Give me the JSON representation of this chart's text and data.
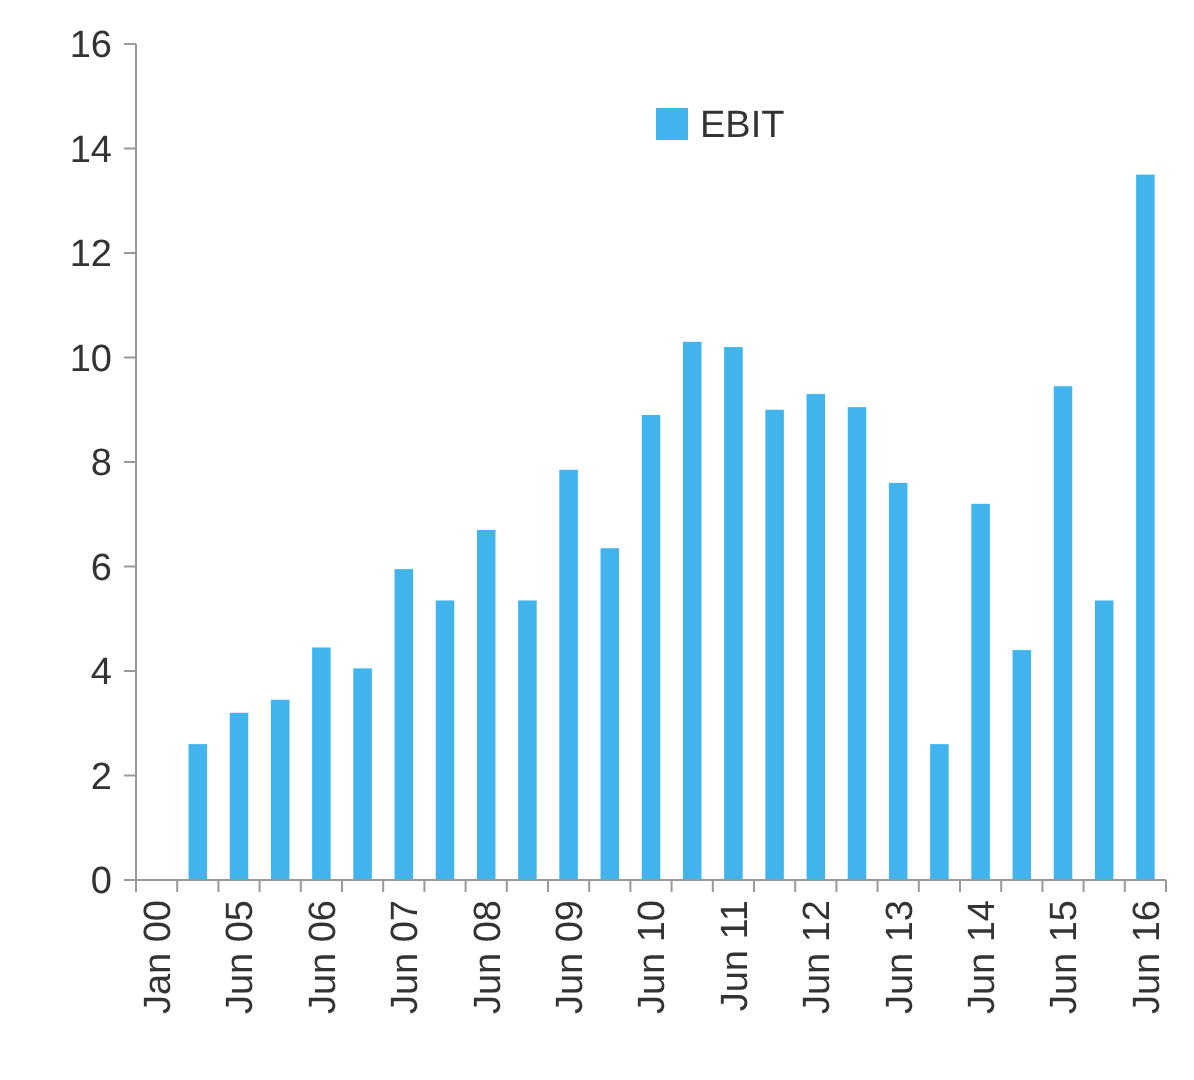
{
  "chart_data": {
    "type": "bar",
    "categories": [
      "Jan 00",
      null,
      "Jun 05",
      null,
      "Jun 06",
      null,
      "Jun 07",
      null,
      "Jun 08",
      null,
      "Jun 09",
      null,
      "Jun 10",
      null,
      "Jun 11",
      null,
      "Jun 12",
      null,
      "Jun 13",
      null,
      "Jun 14",
      null,
      "Jun 15",
      null,
      "Jun 16"
    ],
    "series": [
      {
        "name": "EBIT",
        "color": "#41b4ee",
        "values": [
          null,
          2.6,
          3.2,
          3.45,
          4.45,
          4.05,
          5.95,
          5.35,
          6.7,
          5.35,
          7.85,
          6.35,
          8.9,
          10.3,
          10.2,
          9.0,
          9.3,
          9.05,
          7.6,
          2.6,
          7.2,
          4.4,
          9.45,
          5.35,
          13.5
        ]
      }
    ],
    "ylim": [
      0,
      16
    ],
    "yticks": [
      0,
      2,
      4,
      6,
      8,
      10,
      12,
      14,
      16
    ],
    "grid": false,
    "legend": "top"
  }
}
